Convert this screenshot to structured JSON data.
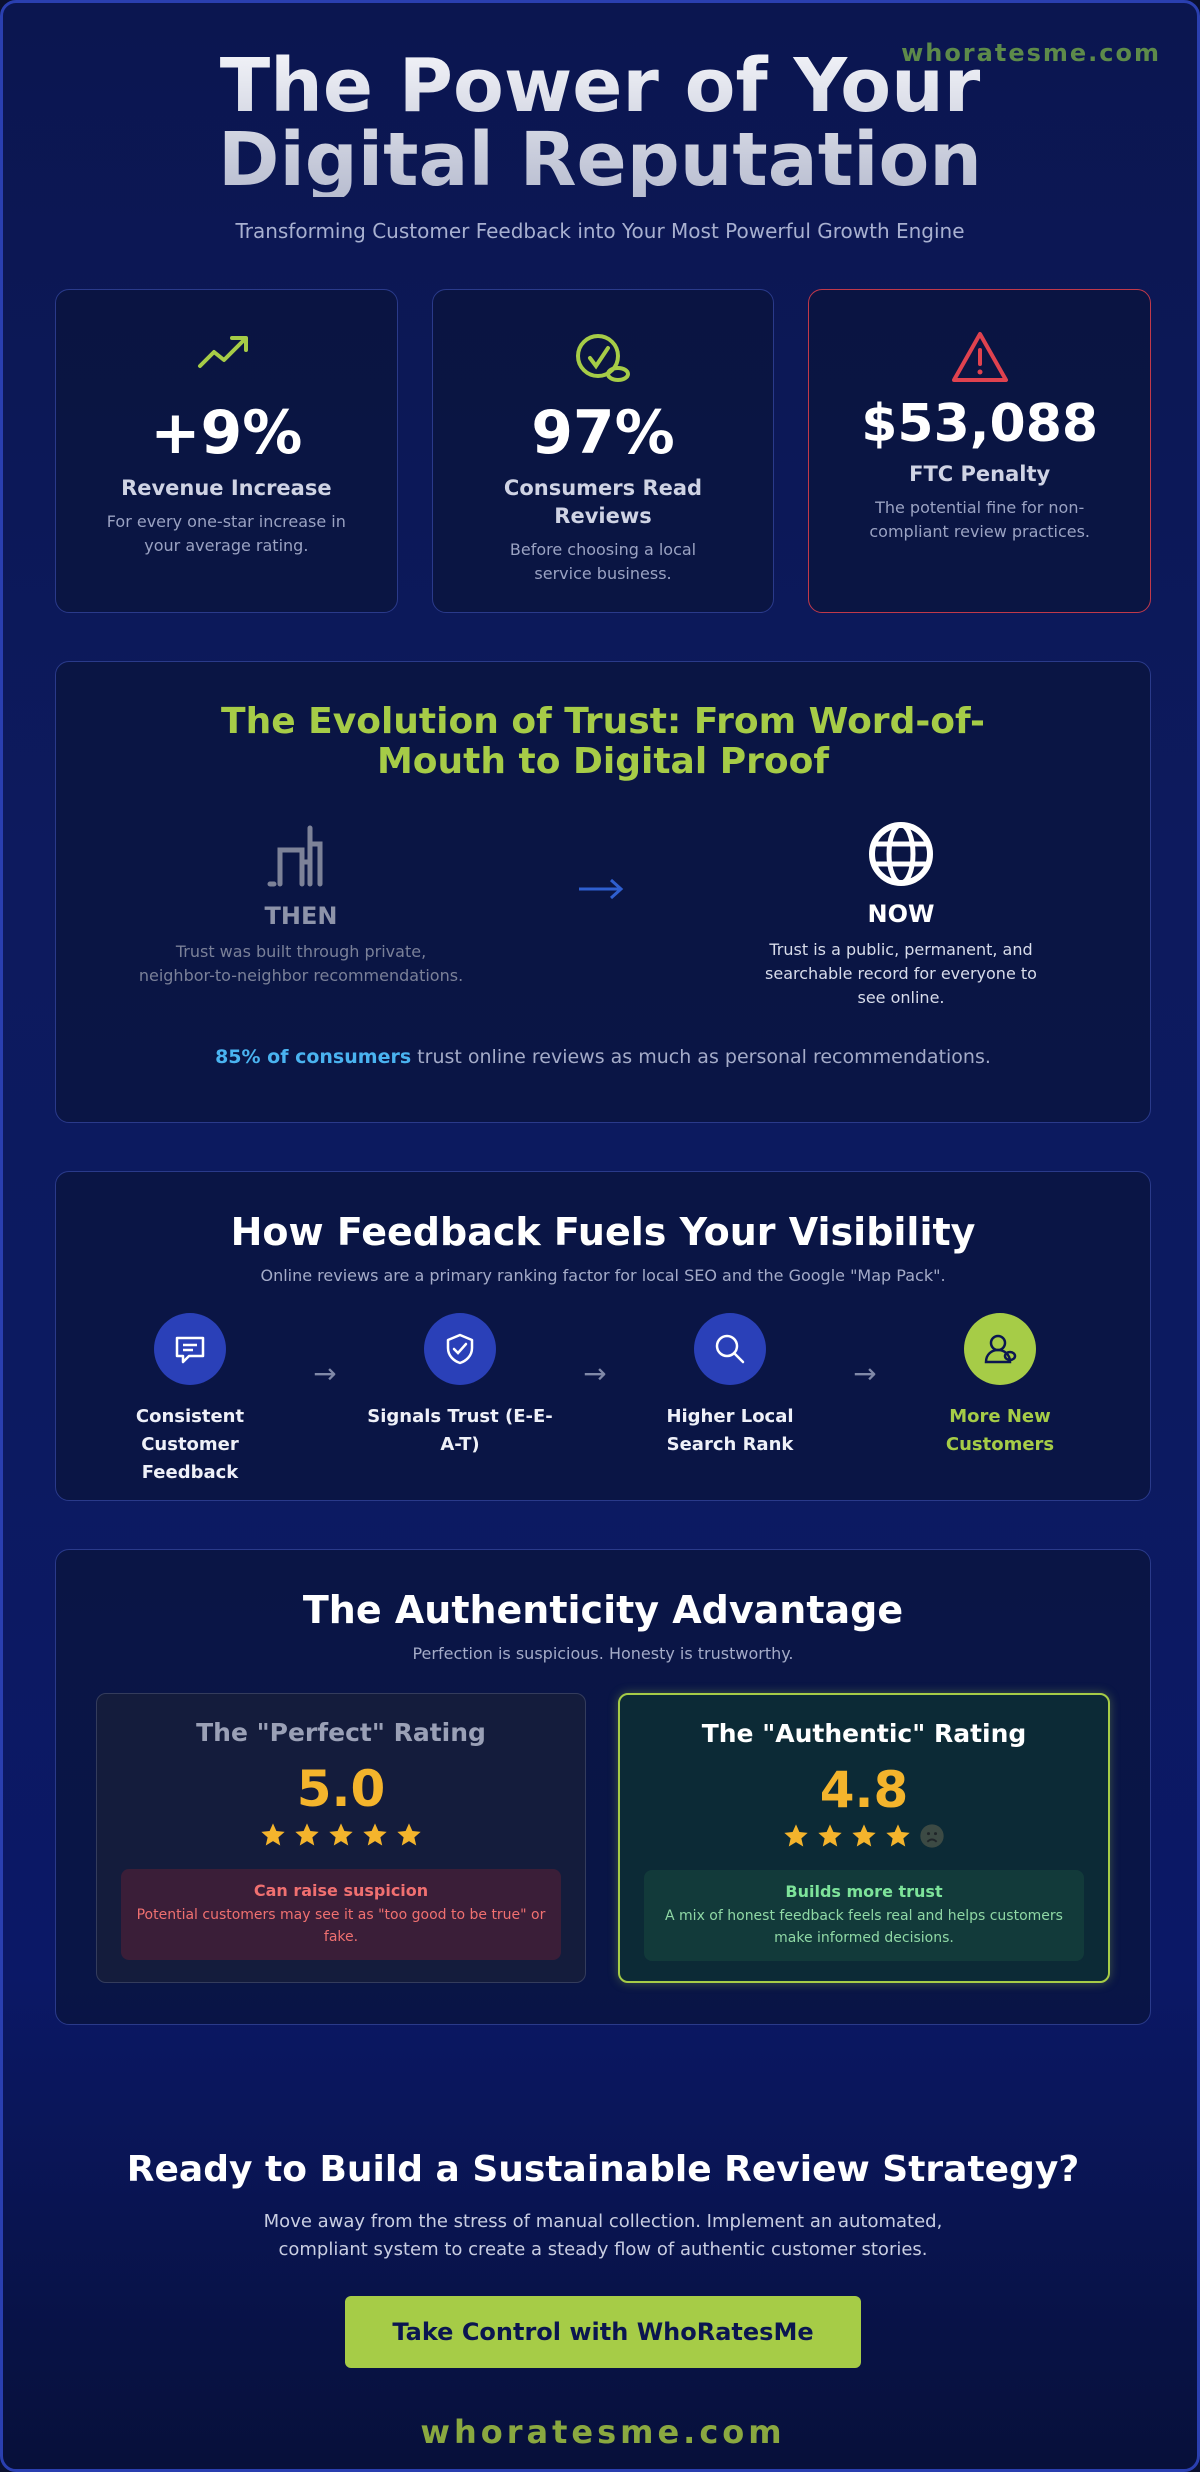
{
  "watermark": "whoratesme.com",
  "hero": {
    "title": "The Power of Your Digital Reputation",
    "subtitle": "Transforming Customer Feedback into Your Most Powerful Growth Engine"
  },
  "stats": [
    {
      "icon": "trending-up-icon",
      "value": "+9%",
      "label": "Revenue Increase",
      "desc": "For every one-star increase in your average rating."
    },
    {
      "icon": "reviews-icon",
      "value": "97%",
      "label": "Consumers Read Reviews",
      "desc": "Before choosing a local service business."
    },
    {
      "icon": "warning-icon",
      "value": "$53,088",
      "label": "FTC Penalty",
      "desc": "The potential fine for non-compliant review practices."
    }
  ],
  "evolution": {
    "title": "The Evolution of Trust: From Word-of-Mouth to Digital Proof",
    "then": {
      "icon": "signal-bars-icon",
      "label": "THEN",
      "desc": "Trust was built through private, neighbor-to-neighbor recommendations."
    },
    "now": {
      "icon": "globe-icon",
      "label": "NOW",
      "desc": "Trust is a public, permanent, and searchable record for everyone to see online."
    },
    "quote_highlight": "85% of consumers",
    "quote_rest": " trust online reviews as much as personal recommendations."
  },
  "feedback": {
    "title": "How Feedback Fuels Your Visibility",
    "subtitle": "Online reviews are a primary ranking factor for local SEO and the Google \"Map Pack\".",
    "steps": [
      {
        "icon": "chat-icon",
        "label": "Consistent Customer Feedback"
      },
      {
        "icon": "shield-check-icon",
        "label": "Signals Trust (E-E-A-T)"
      },
      {
        "icon": "search-icon",
        "label": "Higher Local Search Rank"
      },
      {
        "icon": "customers-icon",
        "label": "More New Customers"
      }
    ]
  },
  "authenticity": {
    "title": "The Authenticity Advantage",
    "subtitle": "Perfection is suspicious. Honesty is trustworthy.",
    "perfect": {
      "title": "The \"Perfect\" Rating",
      "value": "5.0",
      "stars": 5,
      "note_title": "Can raise suspicion",
      "note_desc": "Potential customers may see it as \"too good to be true\" or fake."
    },
    "authentic": {
      "title": "The \"Authentic\" Rating",
      "value": "4.8",
      "stars": 4.8,
      "note_title": "Builds more trust",
      "note_desc": "A mix of honest feedback feels real and helps customers make informed decisions."
    }
  },
  "cta": {
    "title": "Ready to Build a Sustainable Review Strategy?",
    "desc": "Move away from the stress of manual collection. Implement an automated, compliant system to create a steady flow of authentic customer stories.",
    "button": "Take Control with WhoRatesMe"
  },
  "footer": "whoratesme.com",
  "colors": {
    "accent": "#a6cc47",
    "star": "#f4b42c",
    "danger": "#c0394a",
    "link": "#4ab3f0"
  }
}
